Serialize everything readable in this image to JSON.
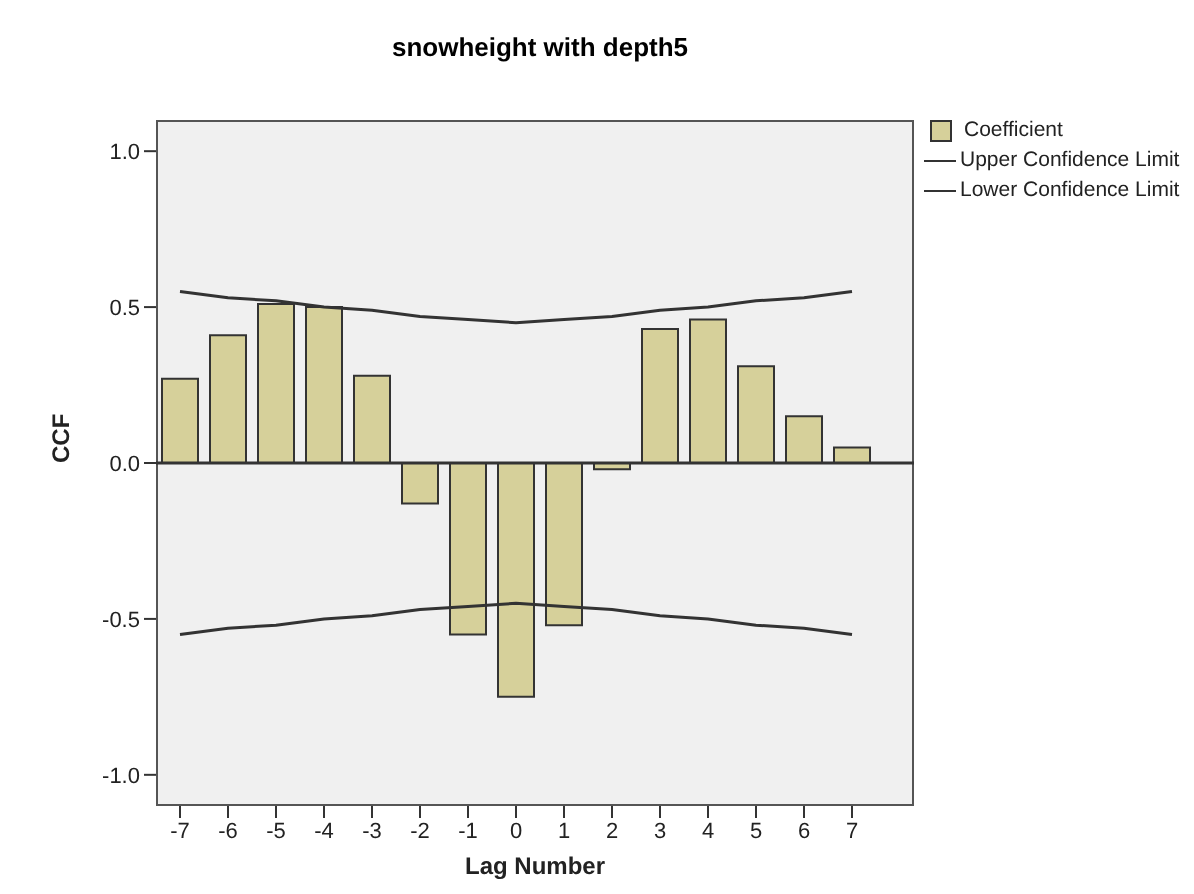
{
  "chart_data": {
    "type": "bar",
    "title": "snowheight with depth5",
    "xlabel": "Lag Number",
    "ylabel": "CCF",
    "categories": [
      "-7",
      "-6",
      "-5",
      "-4",
      "-3",
      "-2",
      "-1",
      "0",
      "1",
      "2",
      "3",
      "4",
      "5",
      "6",
      "7"
    ],
    "series": [
      {
        "name": "Coefficient",
        "color": "#d6d09a",
        "values": [
          0.27,
          0.41,
          0.51,
          0.5,
          0.28,
          -0.13,
          -0.55,
          -0.75,
          -0.52,
          -0.02,
          0.43,
          0.46,
          0.31,
          0.15,
          0.05
        ]
      },
      {
        "name": "Upper Confidence Limit",
        "type": "line",
        "color": "#333333",
        "values": [
          0.55,
          0.53,
          0.52,
          0.5,
          0.49,
          0.47,
          0.46,
          0.45,
          0.46,
          0.47,
          0.49,
          0.5,
          0.52,
          0.53,
          0.55
        ]
      },
      {
        "name": "Lower Confidence Limit",
        "type": "line",
        "color": "#333333",
        "values": [
          -0.55,
          -0.53,
          -0.52,
          -0.5,
          -0.49,
          -0.47,
          -0.46,
          -0.45,
          -0.46,
          -0.47,
          -0.49,
          -0.5,
          -0.52,
          -0.53,
          -0.55
        ]
      }
    ],
    "ylim": [
      -1.1,
      1.1
    ],
    "yticks": [
      {
        "value": -1,
        "label": "-1.0"
      },
      {
        "value": -0.5,
        "label": "-0.5"
      },
      {
        "value": 0,
        "label": "0.0"
      },
      {
        "value": 0.5,
        "label": "0.5"
      },
      {
        "value": 1,
        "label": "1.0"
      }
    ],
    "ref_lines": [
      {
        "axis": "y",
        "value": 0,
        "color": "#333333"
      }
    ],
    "grid": false,
    "legend": "top right",
    "marker": "none",
    "line_style": "solid"
  }
}
